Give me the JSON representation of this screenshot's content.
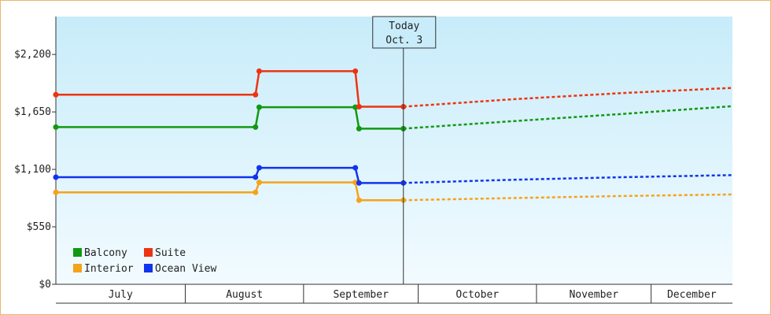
{
  "chart_data": {
    "type": "line",
    "title": "",
    "xlabel": "",
    "ylabel": "",
    "ylim": [
      0,
      2563
    ],
    "yticks": [
      {
        "value": 0,
        "label": "$0"
      },
      {
        "value": 550,
        "label": "$550"
      },
      {
        "value": 1100,
        "label": "$1,100"
      },
      {
        "value": 1650,
        "label": "$1,650"
      },
      {
        "value": 2200,
        "label": "$2,200"
      }
    ],
    "x_start": "2023-07-01",
    "x_end": "2023-12-31",
    "months": [
      {
        "label": "July",
        "start": "2023-07-01",
        "end": "2023-08-05"
      },
      {
        "label": "August",
        "start": "2023-08-05",
        "end": "2023-09-06"
      },
      {
        "label": "September",
        "start": "2023-09-06",
        "end": "2023-10-07"
      },
      {
        "label": "October",
        "start": "2023-10-07",
        "end": "2023-11-08"
      },
      {
        "label": "November",
        "start": "2023-11-08",
        "end": "2023-12-09"
      },
      {
        "label": "December",
        "start": "2023-12-09",
        "end": "2023-12-31"
      }
    ],
    "today": {
      "label": "Today",
      "date_label": "Oct. 3",
      "date": "2023-10-03"
    },
    "series": [
      {
        "name": "Balcony",
        "color": "#119911",
        "actual": [
          {
            "x": "2023-07-01",
            "y": 1505
          },
          {
            "x": "2023-08-24",
            "y": 1505
          },
          {
            "x": "2023-08-25",
            "y": 1695
          },
          {
            "x": "2023-09-20",
            "y": 1695
          },
          {
            "x": "2023-09-21",
            "y": 1490
          },
          {
            "x": "2023-10-03",
            "y": 1490
          }
        ],
        "forecast": [
          {
            "x": "2023-10-03",
            "y": 1490
          },
          {
            "x": "2023-11-01",
            "y": 1560
          },
          {
            "x": "2023-12-01",
            "y": 1630
          },
          {
            "x": "2023-12-31",
            "y": 1705
          }
        ]
      },
      {
        "name": "Suite",
        "color": "#ee3311",
        "actual": [
          {
            "x": "2023-07-01",
            "y": 1815
          },
          {
            "x": "2023-08-24",
            "y": 1815
          },
          {
            "x": "2023-08-25",
            "y": 2040
          },
          {
            "x": "2023-09-20",
            "y": 2040
          },
          {
            "x": "2023-09-21",
            "y": 1700
          },
          {
            "x": "2023-10-03",
            "y": 1700
          }
        ],
        "forecast": [
          {
            "x": "2023-10-03",
            "y": 1700
          },
          {
            "x": "2023-11-01",
            "y": 1770
          },
          {
            "x": "2023-12-01",
            "y": 1830
          },
          {
            "x": "2023-12-31",
            "y": 1880
          }
        ]
      },
      {
        "name": "Interior",
        "color": "#f5a31a",
        "actual": [
          {
            "x": "2023-07-01",
            "y": 880
          },
          {
            "x": "2023-08-24",
            "y": 880
          },
          {
            "x": "2023-08-25",
            "y": 975
          },
          {
            "x": "2023-09-20",
            "y": 975
          },
          {
            "x": "2023-09-21",
            "y": 805
          },
          {
            "x": "2023-10-03",
            "y": 805
          }
        ],
        "forecast": [
          {
            "x": "2023-10-03",
            "y": 805
          },
          {
            "x": "2023-11-01",
            "y": 825
          },
          {
            "x": "2023-12-01",
            "y": 845
          },
          {
            "x": "2023-12-31",
            "y": 860
          }
        ]
      },
      {
        "name": "Ocean View",
        "color": "#1133ee",
        "actual": [
          {
            "x": "2023-07-01",
            "y": 1025
          },
          {
            "x": "2023-08-24",
            "y": 1025
          },
          {
            "x": "2023-08-25",
            "y": 1115
          },
          {
            "x": "2023-09-20",
            "y": 1115
          },
          {
            "x": "2023-09-21",
            "y": 970
          },
          {
            "x": "2023-10-03",
            "y": 970
          }
        ],
        "forecast": [
          {
            "x": "2023-10-03",
            "y": 970
          },
          {
            "x": "2023-11-01",
            "y": 1000
          },
          {
            "x": "2023-12-01",
            "y": 1025
          },
          {
            "x": "2023-12-31",
            "y": 1045
          }
        ]
      }
    ],
    "legend": {
      "position": "bottom-left"
    },
    "grid": false,
    "background_gradient": [
      "#c8ecfa",
      "#f2fbff"
    ]
  }
}
